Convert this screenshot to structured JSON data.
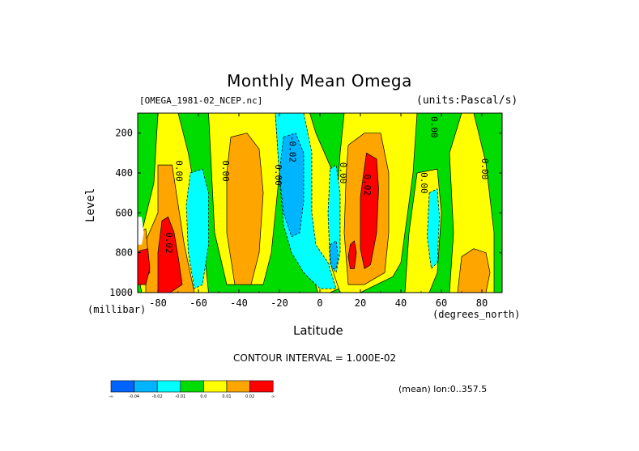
{
  "chart_data": {
    "type": "heatmap",
    "title": "Monthly Mean Omega",
    "file_label": "[OMEGA_1981-02_NCEP.nc]",
    "units_label": "(units:Pascal/s)",
    "xlabel": "Latitude",
    "x_unit": "(degrees_north)",
    "ylabel": "Level",
    "y_unit": "(millibar)",
    "xlim": [
      -90,
      90
    ],
    "ylim": [
      1000,
      100
    ],
    "x_ticks": [
      "-80",
      "-60",
      "-40",
      "-20",
      "0",
      "20",
      "40",
      "60",
      "80"
    ],
    "x_tick_values": [
      -80,
      -60,
      -40,
      -20,
      0,
      20,
      40,
      60,
      80
    ],
    "y_ticks": [
      "200",
      "400",
      "600",
      "800",
      "1000"
    ],
    "y_tick_values": [
      200,
      400,
      600,
      800,
      1000
    ],
    "contour_interval": "CONTOUR INTERVAL = 1.000E-02",
    "mean_note": "(mean) lon:0..357.5",
    "contour_labels": [
      {
        "text": "0.00",
        "lat": -71,
        "lev": 390
      },
      {
        "text": "0.00",
        "lat": -48,
        "lev": 390
      },
      {
        "text": "0.00",
        "lat": -22,
        "lev": 410
      },
      {
        "text": "-0.02",
        "lat": -15,
        "lev": 280
      },
      {
        "text": "0.00",
        "lat": 10,
        "lev": 400
      },
      {
        "text": "0.02",
        "lat": 22,
        "lev": 460
      },
      {
        "text": "0.00",
        "lat": 50,
        "lev": 450
      },
      {
        "text": "0.00",
        "lat": 55,
        "lev": 170
      },
      {
        "text": "0.00",
        "lat": 80,
        "lev": 380
      },
      {
        "text": "0.02",
        "lat": -76,
        "lev": 750
      }
    ],
    "colorbar": {
      "colors": [
        "#0064ff",
        "#00b4ff",
        "#00ffff",
        "#00dc00",
        "#ffff00",
        "#ffa500",
        "#ff0000"
      ],
      "labels": [
        "-∞",
        "-0.04",
        "-0.02",
        "-0.01",
        "0.0",
        "0.01",
        "0.02",
        "∞"
      ]
    },
    "regions": [
      {
        "level": 0,
        "color": "#00dc00",
        "pts": [
          [
            -90,
            100
          ],
          [
            90,
            100
          ],
          [
            90,
            1000
          ],
          [
            -90,
            1000
          ]
        ]
      },
      {
        "level": 1,
        "color": "#ffff00",
        "pts": [
          [
            -80,
            100
          ],
          [
            -70,
            100
          ],
          [
            -65,
            300
          ],
          [
            -58,
            700
          ],
          [
            -55,
            1000
          ],
          [
            -88,
            1000
          ],
          [
            -90,
            900
          ],
          [
            -88,
            700
          ],
          [
            -82,
            450
          ]
        ]
      },
      {
        "level": 1,
        "color": "#ffff00",
        "pts": [
          [
            -55,
            100
          ],
          [
            -22,
            100
          ],
          [
            -20,
            400
          ],
          [
            -24,
            800
          ],
          [
            -28,
            960
          ],
          [
            -46,
            960
          ],
          [
            -52,
            700
          ],
          [
            -54,
            300
          ]
        ]
      },
      {
        "level": 1,
        "color": "#ffff00",
        "pts": [
          [
            -14,
            100
          ],
          [
            -5,
            100
          ],
          [
            -2,
            200
          ],
          [
            4,
            340
          ],
          [
            10,
            480
          ],
          [
            12,
            700
          ],
          [
            14,
            960
          ],
          [
            5,
            1000
          ],
          [
            -1,
            1000
          ],
          [
            -5,
            860
          ],
          [
            -10,
            760
          ],
          [
            -14,
            600
          ]
        ]
      },
      {
        "level": 1,
        "color": "#ffff00",
        "pts": [
          [
            12,
            100
          ],
          [
            48,
            100
          ],
          [
            46,
            400
          ],
          [
            42,
            700
          ],
          [
            40,
            850
          ],
          [
            36,
            920
          ],
          [
            20,
            1000
          ],
          [
            10,
            1000
          ],
          [
            6,
            880
          ],
          [
            8,
            600
          ],
          [
            10,
            300
          ]
        ]
      },
      {
        "level": 1,
        "color": "#ffff00",
        "pts": [
          [
            48,
            400
          ],
          [
            58,
            380
          ],
          [
            60,
            600
          ],
          [
            58,
            900
          ],
          [
            54,
            1000
          ],
          [
            42,
            1000
          ],
          [
            44,
            700
          ]
        ]
      },
      {
        "level": 1,
        "color": "#ffff00",
        "pts": [
          [
            64,
            300
          ],
          [
            70,
            100
          ],
          [
            76,
            100
          ],
          [
            82,
            350
          ],
          [
            86,
            700
          ],
          [
            86,
            1000
          ],
          [
            64,
            1000
          ],
          [
            66,
            700
          ]
        ]
      },
      {
        "level": 2,
        "color": "#ffa500",
        "pts": [
          [
            -80,
            360
          ],
          [
            -73,
            360
          ],
          [
            -70,
            560
          ],
          [
            -67,
            760
          ],
          [
            -62,
            1000
          ],
          [
            -86,
            1000
          ],
          [
            -86,
            740
          ],
          [
            -80,
            600
          ]
        ]
      },
      {
        "level": 2,
        "color": "#ffa500",
        "pts": [
          [
            -44,
            220
          ],
          [
            -36,
            200
          ],
          [
            -30,
            280
          ],
          [
            -28,
            500
          ],
          [
            -30,
            800
          ],
          [
            -34,
            960
          ],
          [
            -42,
            960
          ],
          [
            -46,
            700
          ],
          [
            -46,
            400
          ]
        ]
      },
      {
        "level": 2,
        "color": "#ffa500",
        "pts": [
          [
            14,
            260
          ],
          [
            22,
            200
          ],
          [
            30,
            200
          ],
          [
            34,
            400
          ],
          [
            34,
            700
          ],
          [
            32,
            900
          ],
          [
            22,
            960
          ],
          [
            14,
            960
          ],
          [
            12,
            700
          ],
          [
            13,
            400
          ]
        ]
      },
      {
        "level": 2,
        "color": "#ffa500",
        "pts": [
          [
            70,
            820
          ],
          [
            76,
            780
          ],
          [
            82,
            800
          ],
          [
            84,
            900
          ],
          [
            82,
            1000
          ],
          [
            68,
            1000
          ]
        ]
      },
      {
        "level": 3,
        "color": "#ff0000",
        "pts": [
          [
            -78,
            640
          ],
          [
            -75,
            620
          ],
          [
            -72,
            700
          ],
          [
            -70,
            820
          ],
          [
            -68,
            960
          ],
          [
            -74,
            1000
          ],
          [
            -80,
            1000
          ],
          [
            -80,
            800
          ]
        ]
      },
      {
        "level": 3,
        "color": "#ff0000",
        "pts": [
          [
            23,
            300
          ],
          [
            28,
            330
          ],
          [
            29,
            480
          ],
          [
            28,
            700
          ],
          [
            25,
            860
          ],
          [
            22,
            880
          ],
          [
            20,
            780
          ],
          [
            20,
            520
          ]
        ]
      },
      {
        "level": 3,
        "color": "#ff0000",
        "pts": [
          [
            15,
            760
          ],
          [
            17,
            740
          ],
          [
            18,
            800
          ],
          [
            17,
            880
          ],
          [
            15,
            880
          ],
          [
            14,
            820
          ]
        ]
      },
      {
        "level": 2,
        "color": "#ffa500",
        "pts": [
          [
            -90,
            700
          ],
          [
            -86,
            680
          ],
          [
            -84,
            900
          ],
          [
            -90,
            960
          ]
        ]
      },
      {
        "level": 3,
        "color": "#ff0000",
        "pts": [
          [
            -89,
            790
          ],
          [
            -85,
            780
          ],
          [
            -84,
            880
          ],
          [
            -86,
            960
          ],
          [
            -90,
            960
          ],
          [
            -90,
            800
          ]
        ]
      },
      {
        "level": -2,
        "color": "#00ffff",
        "pts": [
          [
            -64,
            400
          ],
          [
            -58,
            380
          ],
          [
            -55,
            500
          ],
          [
            -55,
            760
          ],
          [
            -58,
            960
          ],
          [
            -62,
            980
          ],
          [
            -65,
            800
          ],
          [
            -66,
            560
          ]
        ]
      },
      {
        "level": -2,
        "color": "#00ffff",
        "pts": [
          [
            -22,
            100
          ],
          [
            -8,
            100
          ],
          [
            -4,
            300
          ],
          [
            -4,
            600
          ],
          [
            -2,
            760
          ],
          [
            4,
            850
          ],
          [
            8,
            980
          ],
          [
            0,
            980
          ],
          [
            -8,
            900
          ],
          [
            -14,
            800
          ],
          [
            -18,
            660
          ],
          [
            -20,
            420
          ]
        ]
      },
      {
        "level": -2,
        "color": "#00ffff",
        "pts": [
          [
            5,
            380
          ],
          [
            8,
            360
          ],
          [
            10,
            500
          ],
          [
            10,
            800
          ],
          [
            8,
            900
          ],
          [
            5,
            860
          ],
          [
            4,
            600
          ]
        ]
      },
      {
        "level": -2,
        "color": "#00ffff",
        "pts": [
          [
            54,
            500
          ],
          [
            58,
            480
          ],
          [
            59,
            620
          ],
          [
            58,
            850
          ],
          [
            55,
            880
          ],
          [
            53,
            720
          ]
        ]
      },
      {
        "level": -3,
        "color": "#00b4ff",
        "pts": [
          [
            -18,
            220
          ],
          [
            -12,
            200
          ],
          [
            -8,
            300
          ],
          [
            -8,
            540
          ],
          [
            -10,
            700
          ],
          [
            -14,
            720
          ],
          [
            -18,
            600
          ],
          [
            -20,
            400
          ]
        ]
      },
      {
        "level": -3,
        "color": "#00b4ff",
        "pts": [
          [
            5,
            760
          ],
          [
            8,
            740
          ],
          [
            9,
            820
          ],
          [
            8,
            880
          ],
          [
            6,
            880
          ],
          [
            5,
            820
          ]
        ]
      },
      {
        "level": 0,
        "color": "#ffffff",
        "pts": [
          [
            -90,
            620
          ],
          [
            -88,
            620
          ],
          [
            -87,
            700
          ],
          [
            -88,
            760
          ],
          [
            -90,
            760
          ]
        ]
      }
    ]
  }
}
